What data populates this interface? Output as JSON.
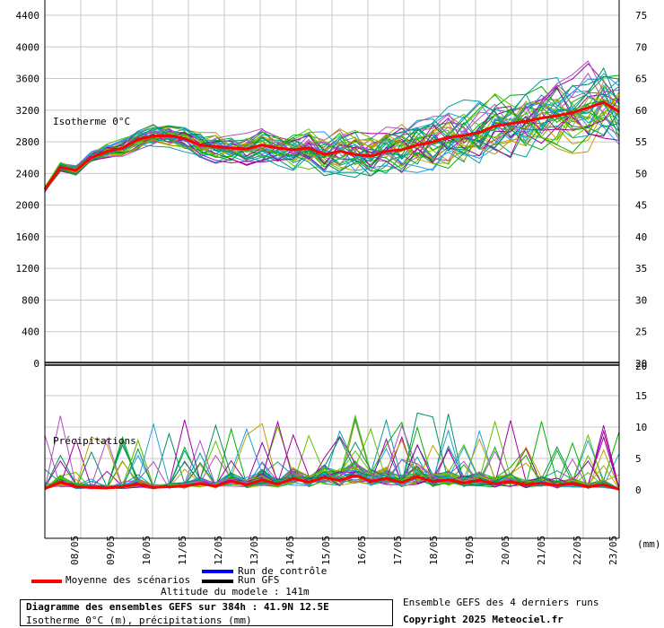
{
  "chart_data": {
    "type": "line",
    "panels": {
      "isotherm": {
        "label": "Isotherme 0°C",
        "ylim_left": [
          0,
          4600
        ],
        "left_ticks": [
          0,
          400,
          800,
          1200,
          1600,
          2000,
          2400,
          2800,
          3200,
          3600,
          4000,
          4400
        ],
        "right_ticks": [
          20,
          25,
          30,
          35,
          40,
          45,
          50,
          55,
          60,
          65,
          70,
          75
        ],
        "mean_series": {
          "name": "Moyenne des scénarios",
          "values": [
            2200,
            2480,
            2440,
            2600,
            2680,
            2720,
            2830,
            2870,
            2880,
            2840,
            2760,
            2740,
            2720,
            2710,
            2760,
            2720,
            2700,
            2720,
            2640,
            2680,
            2640,
            2620,
            2680,
            2700,
            2760,
            2800,
            2860,
            2880,
            2920,
            3000,
            3030,
            3060,
            3100,
            3130,
            3170,
            3230,
            3300,
            3180
          ]
        }
      },
      "precipitation": {
        "label": "Précipitations",
        "ylim_right": [
          0,
          20
        ],
        "right_ticks": [
          0,
          5,
          10,
          15,
          20
        ],
        "right_unit": "(mm)",
        "mean_series": {
          "name": "Moyenne des scénarios",
          "values": [
            0.2,
            1.2,
            0.5,
            0.4,
            0.3,
            0.5,
            0.9,
            0.4,
            0.5,
            0.6,
            1.0,
            0.6,
            1.4,
            0.8,
            1.6,
            0.9,
            1.8,
            1.2,
            2.0,
            1.5,
            2.3,
            1.4,
            1.8,
            1.2,
            2.1,
            1.3,
            1.6,
            1.1,
            1.5,
            1.0,
            1.3,
            0.8,
            1.1,
            0.7,
            1.0,
            0.5,
            0.8,
            0.1
          ]
        }
      }
    },
    "x_dates": [
      "08/05",
      "09/05",
      "10/05",
      "11/05",
      "12/05",
      "13/05",
      "14/05",
      "15/05",
      "16/05",
      "17/05",
      "18/05",
      "19/05",
      "20/05",
      "21/05",
      "22/05",
      "23/05"
    ],
    "ensemble_colors": [
      "#00b000",
      "#00a0a0",
      "#a000a0",
      "#c0a000",
      "#20a0e0",
      "#60c000",
      "#b050c0",
      "#009060"
    ],
    "mean_color": "#ff0000",
    "control_color": "#0000ff",
    "gfs_color": "#000000"
  },
  "legend": {
    "control": "Run de contrôle",
    "gfs": "Run GFS",
    "mean": "Moyenne des scénarios",
    "altitude": "Altitude du modele : 141m"
  },
  "footer": {
    "title": "Diagramme des ensembles GEFS sur 384h : 41.9N 12.5E",
    "subtitle": "Isotherme 0°C (m), précipitations (mm)",
    "ensemble_note": "Ensemble GEFS des 4 derniers runs",
    "copyright": "Copyright 2025 Meteociel.fr"
  }
}
